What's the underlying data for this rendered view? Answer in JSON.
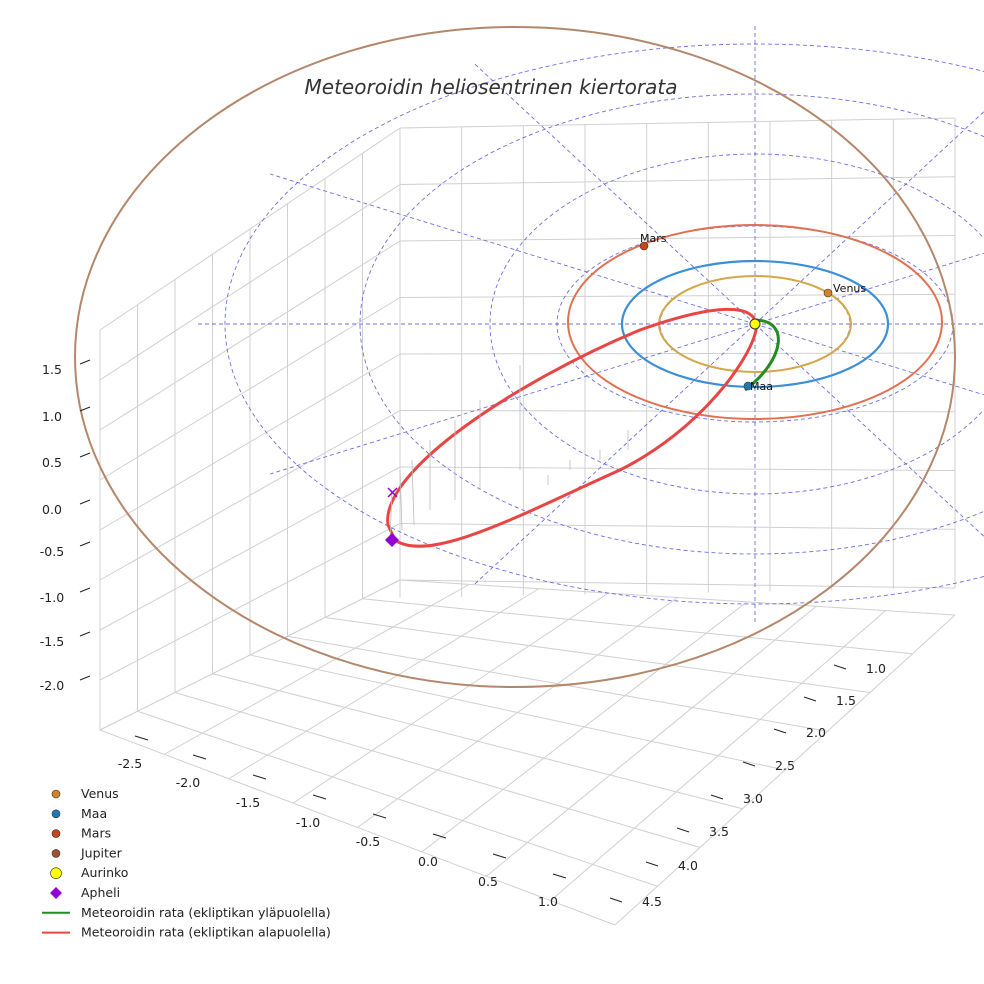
{
  "chart_data": {
    "type": "line",
    "title": "Meteoroidin heliosentrinen kiertorata",
    "axes": {
      "x_ticks": [
        "-2.5",
        "-2.0",
        "-1.5",
        "-1.0",
        "-0.5",
        "0.0",
        "0.5",
        "1.0"
      ],
      "y_ticks": [
        "1.0",
        "1.5",
        "2.0",
        "2.5",
        "3.0",
        "3.5",
        "4.0",
        "4.5"
      ],
      "z_ticks": [
        "1.5",
        "1.0",
        "0.5",
        "0.0",
        "-0.5",
        "-1.0",
        "-1.5",
        "-2.0"
      ]
    },
    "planet_labels": [
      "Mars",
      "Venus",
      "Maa"
    ],
    "legend": [
      {
        "label": "Venus",
        "marker": "circle",
        "color": "#d4822a"
      },
      {
        "label": "Maa",
        "marker": "circle",
        "color": "#1f77b4"
      },
      {
        "label": "Mars",
        "marker": "circle",
        "color": "#c8451b"
      },
      {
        "label": "Jupiter",
        "marker": "circle",
        "color": "#a0522d"
      },
      {
        "label": "Aurinko",
        "marker": "circle",
        "color": "#ffff00"
      },
      {
        "label": "Apheli",
        "marker": "diamond",
        "color": "#9400d3"
      },
      {
        "label": "Meteoroidin rata (ekliptikan yläpuolella)",
        "marker": "line",
        "color": "#228b22"
      },
      {
        "label": "Meteoroidin rata (ekliptikan alapuolella)",
        "marker": "line",
        "color": "#e84545"
      }
    ],
    "orbit_colors": {
      "venus": "#d4a84a",
      "earth": "#3a8fd6",
      "mars": "#e07050",
      "jupiter": "#b5876a",
      "meteoroid_above": "#228b22",
      "meteoroid_below": "#e84545",
      "ecliptic_grid": "#5555dd"
    }
  }
}
